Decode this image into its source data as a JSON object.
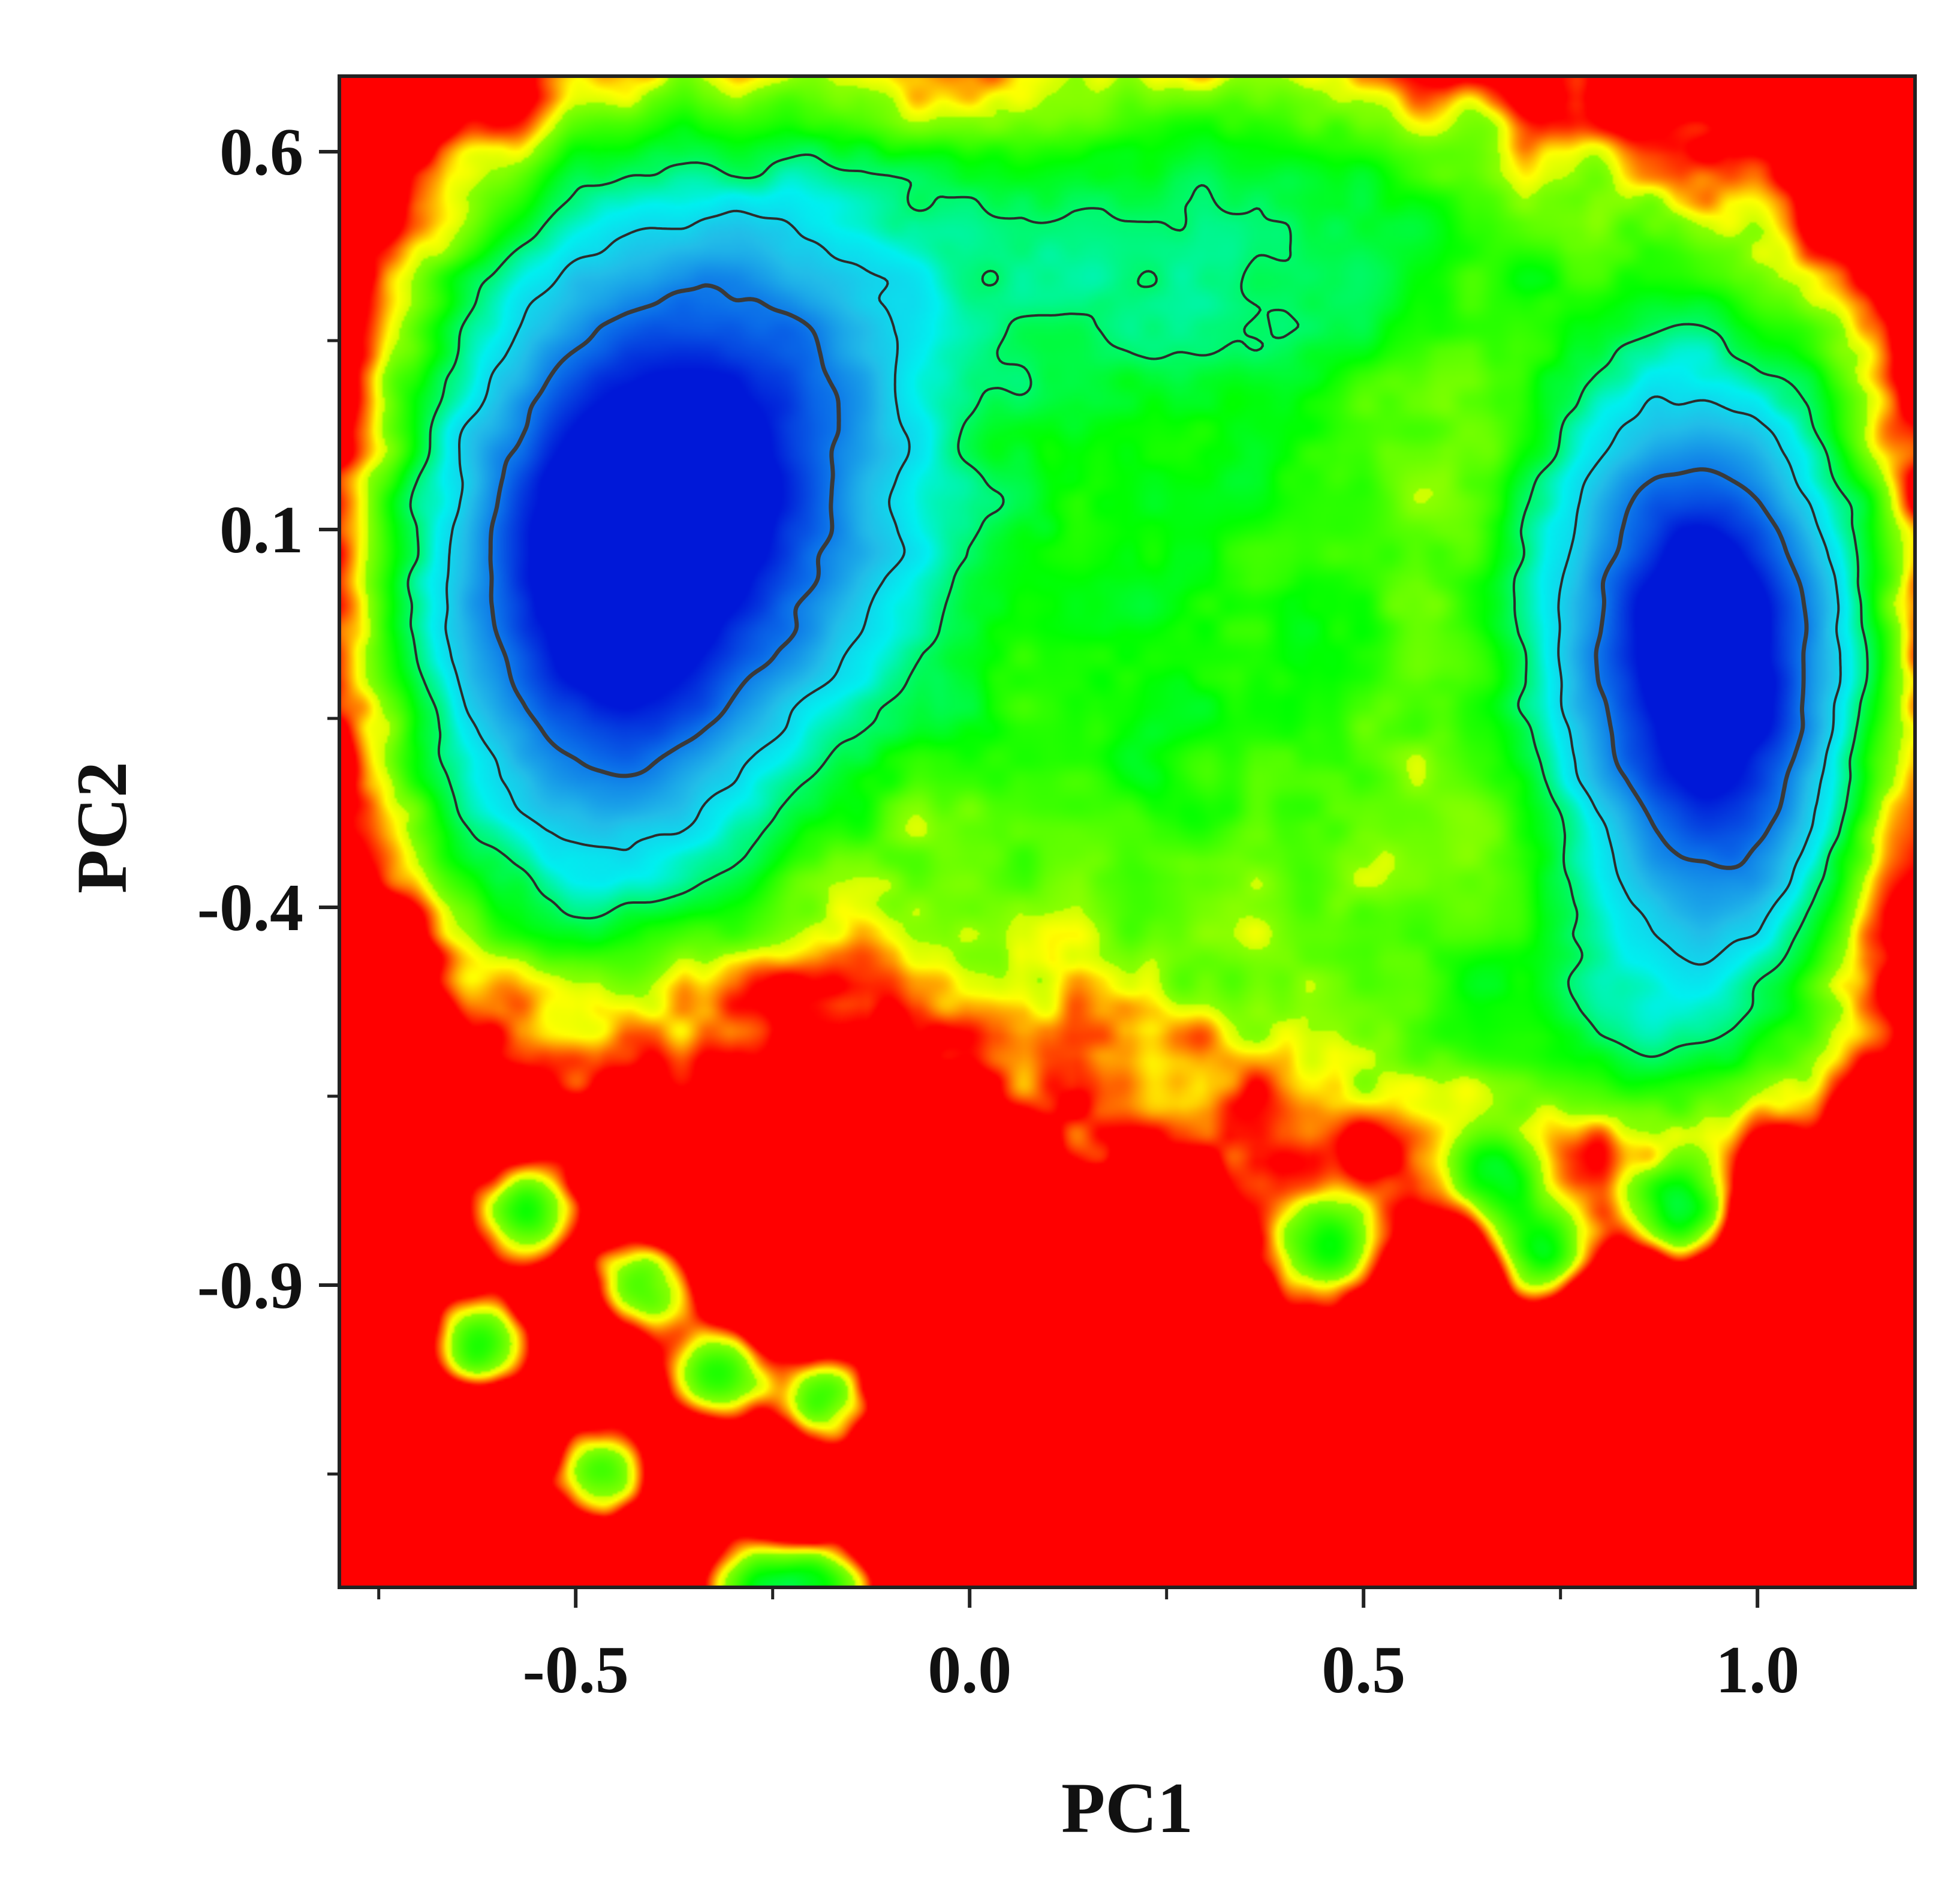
{
  "chart_data": {
    "type": "heatmap",
    "title": "",
    "xlabel": "PC1",
    "ylabel": "PC2",
    "xlim": [
      -0.8,
      1.2
    ],
    "ylim": [
      -1.3,
      0.7
    ],
    "x_ticks": [
      {
        "value": -0.5,
        "label": "-0.5"
      },
      {
        "value": 0.0,
        "label": "0.0"
      },
      {
        "value": 0.5,
        "label": "0.5"
      },
      {
        "value": 1.0,
        "label": "1.0"
      }
    ],
    "x_minor_ticks": [
      -0.75,
      -0.25,
      0.25,
      0.75
    ],
    "y_ticks": [
      {
        "value": 0.6,
        "label": "0.6"
      },
      {
        "value": 0.1,
        "label": "0.1"
      },
      {
        "value": -0.4,
        "label": "-0.4"
      },
      {
        "value": -0.9,
        "label": "-0.9"
      }
    ],
    "y_minor_ticks": [
      0.35,
      -0.15,
      -0.65,
      -1.15
    ],
    "grid": false,
    "legend": "none",
    "colormap": [
      "#0018d8",
      "#0a6ae8",
      "#22bde8",
      "#00f0f0",
      "#00ff00",
      "#ffff00",
      "#ff0000"
    ],
    "basins": [
      {
        "center": [
          -0.48,
          0.04
        ],
        "spread": [
          0.16,
          0.3
        ],
        "depth": 1.0
      },
      {
        "center": [
          -0.25,
          0.2
        ],
        "spread": [
          0.15,
          0.25
        ],
        "depth": 0.55
      },
      {
        "center": [
          0.93,
          0.03
        ],
        "spread": [
          0.14,
          0.22
        ],
        "depth": 0.85
      },
      {
        "center": [
          0.95,
          -0.25
        ],
        "spread": [
          0.12,
          0.2
        ],
        "depth": 0.55
      },
      {
        "center": [
          0.25,
          -0.05
        ],
        "spread": [
          0.35,
          0.45
        ],
        "depth": 0.32
      },
      {
        "center": [
          0.3,
          0.5
        ],
        "spread": [
          0.45,
          0.15
        ],
        "depth": 0.25
      },
      {
        "center": [
          0.8,
          -0.55
        ],
        "spread": [
          0.2,
          0.12
        ],
        "depth": 0.25
      }
    ],
    "isolated_spots": [
      [
        -0.62,
        -0.98
      ],
      [
        -0.42,
        -0.9
      ],
      [
        -0.33,
        -1.02
      ],
      [
        -0.19,
        -1.05
      ],
      [
        -0.47,
        -1.15
      ],
      [
        -0.28,
        -1.3
      ],
      [
        -0.19,
        -1.3
      ],
      [
        -0.56,
        -0.8
      ],
      [
        0.45,
        -0.85
      ],
      [
        0.73,
        -0.85
      ],
      [
        0.67,
        -0.76
      ],
      [
        0.9,
        -0.8
      ]
    ]
  }
}
